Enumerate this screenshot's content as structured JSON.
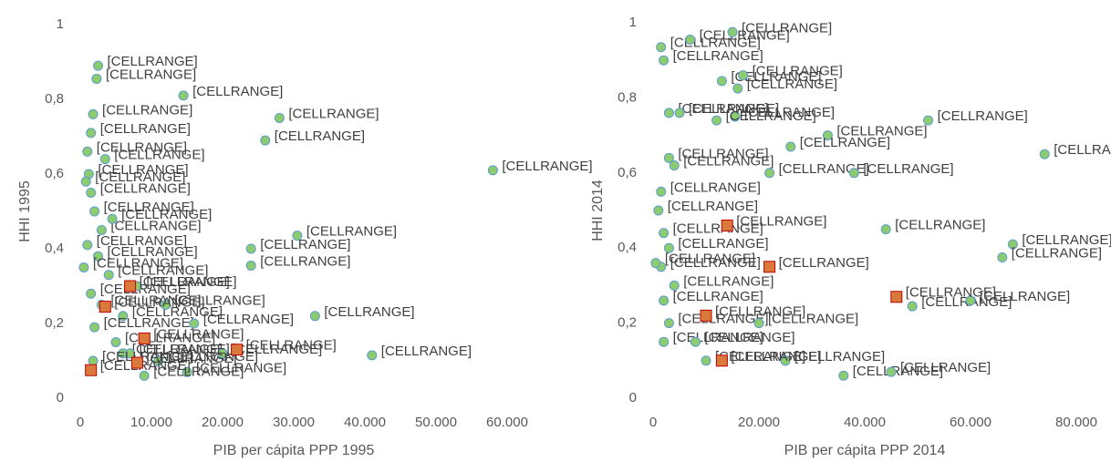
{
  "chart_data": [
    {
      "type": "scatter",
      "x_label": "PIB per cápita PPP 1995",
      "y_label": "HHI 1995",
      "xlim": [
        0,
        60000
      ],
      "ylim": [
        0,
        1
      ],
      "xticks": [
        0,
        {
          "value": 10000,
          "label": "10.000"
        },
        {
          "value": 20000,
          "label": "20.000"
        },
        {
          "value": 30000,
          "label": "30.000"
        },
        {
          "value": 40000,
          "label": "40.000"
        },
        {
          "value": 50000,
          "label": "50.000"
        },
        {
          "value": 60000,
          "label": "60.000"
        }
      ],
      "yticks": [
        0,
        {
          "value": 0.2,
          "label": "0,2"
        },
        {
          "value": 0.4,
          "label": "0,4"
        },
        {
          "value": 0.6,
          "label": "0,6"
        },
        {
          "value": 0.8,
          "label": "0,8"
        },
        1
      ],
      "series": [
        {
          "marker": "circle",
          "color": "#8ccc6e",
          "edge_color": "#5b9bd5",
          "x": [
            2500,
            2300,
            14500,
            28000,
            26000,
            58000,
            1800,
            1500,
            1000,
            1200,
            800,
            1500,
            2000,
            3000,
            1000,
            2500,
            500,
            4000,
            1500,
            3000,
            6000,
            2000,
            5000,
            6000,
            30500,
            24000,
            24000,
            33000,
            41000,
            15000,
            9000,
            11000,
            20000,
            8000,
            12000,
            16000,
            3500,
            7000,
            1800,
            4500
          ],
          "values": [
            0.89,
            0.855,
            0.81,
            0.75,
            0.69,
            0.61,
            0.76,
            0.71,
            0.66,
            0.6,
            0.58,
            0.55,
            0.5,
            0.45,
            0.41,
            0.38,
            0.35,
            0.33,
            0.28,
            0.25,
            0.22,
            0.19,
            0.15,
            0.12,
            0.435,
            0.4,
            0.355,
            0.22,
            0.115,
            0.07,
            0.06,
            0.1,
            0.12,
            0.3,
            0.25,
            0.2,
            0.64,
            0.12,
            0.1,
            0.48
          ],
          "labels": [
            "[CELLRANGE]",
            "[CELLRANGE]",
            "[CELLRANGE]",
            "[CELLRANGE]",
            "[CELLRANGE]",
            "[CELLRANGE]",
            "[CELLRANGE]",
            "[CELLRANGE]",
            "[CELLRANGE]",
            "[CELLRANGE]",
            "[CELLRANGE]",
            "[CELLRANGE]",
            "[CELLRANGE]",
            "[CELLRANGE]",
            "[CELLRANGE]",
            "[CELLRANGE]",
            "[CELLRANGE]",
            "[CELLRANGE]",
            "[CELLRANGE]",
            "[CELLRANGE]",
            "[CELLRANGE]",
            "[CELLRANGE]",
            "[CELLRANGE]",
            "[CELLRANGE]",
            "[CELLRANGE]",
            "[CELLRANGE]",
            "[CELLRANGE]",
            "[CELLRANGE]",
            "[CELLRANGE]",
            "[CELLRANGE]",
            "[CELLRANGE]",
            "[CELLRANGE]",
            "[CELLRANGE]",
            "[CELLRANGE]",
            "[CELLRANGE]",
            "[CELLRANGE]",
            "[CELLRANGE]",
            "[CELLRANGE]",
            "[CELLRANGE]",
            "[CELLRANGE]"
          ]
        },
        {
          "marker": "square",
          "color": "#d9793c",
          "edge_color": "#c00000",
          "x": [
            1500,
            3500,
            8000,
            22000,
            7000,
            9000
          ],
          "values": [
            0.075,
            0.245,
            0.095,
            0.13,
            0.3,
            0.16
          ],
          "labels": [
            "[CELLRANGE]",
            "[CELLRANGE]",
            "[CELLRANGE]",
            "[CELLRANGE]",
            "[CELLRANGE]",
            "[CELLRANGE]"
          ]
        }
      ]
    },
    {
      "type": "scatter",
      "x_label": "PIB per cápita PPP 2014",
      "y_label": "HHI 2014",
      "xlim": [
        0,
        80000
      ],
      "ylim": [
        0,
        1
      ],
      "xticks": [
        0,
        {
          "value": 20000,
          "label": "20.000"
        },
        {
          "value": 40000,
          "label": "40.000"
        },
        {
          "value": 60000,
          "label": "60.000"
        },
        {
          "value": 80000,
          "label": "80.000"
        }
      ],
      "yticks": [
        0,
        {
          "value": 0.2,
          "label": "0,2"
        },
        {
          "value": 0.4,
          "label": "0,4"
        },
        {
          "value": 0.6,
          "label": "0,6"
        },
        {
          "value": 0.8,
          "label": "0,8"
        },
        1
      ],
      "series": [
        {
          "marker": "circle",
          "color": "#8ccc6e",
          "edge_color": "#5b9bd5",
          "x": [
            1500,
            7000,
            15000,
            2000,
            13000,
            17000,
            16000,
            3000,
            5000,
            15500,
            12000,
            52000,
            33000,
            26000,
            74000,
            3000,
            4000,
            22000,
            38000,
            1500,
            1000,
            2000,
            44000,
            68000,
            66000,
            3000,
            1500,
            500,
            4000,
            2000,
            49000,
            60000,
            3000,
            2000,
            10000,
            8000,
            25000,
            36000,
            45000,
            20000
          ],
          "values": [
            0.935,
            0.955,
            0.975,
            0.9,
            0.845,
            0.86,
            0.825,
            0.76,
            0.76,
            0.75,
            0.74,
            0.74,
            0.7,
            0.67,
            0.65,
            0.64,
            0.62,
            0.6,
            0.6,
            0.55,
            0.5,
            0.44,
            0.45,
            0.41,
            0.375,
            0.4,
            0.35,
            0.36,
            0.3,
            0.26,
            0.245,
            0.26,
            0.2,
            0.15,
            0.1,
            0.15,
            0.1,
            0.06,
            0.07,
            0.2
          ],
          "labels": [
            "[CELLRANGE]",
            "[CELLRANGE]",
            "[CELLRANGE]",
            "[CELLRANGE]",
            "[CELLRANGE]",
            "[CELLRANGE]",
            "[CELLRANGE]",
            "[CELLRANGE]",
            "[CELLRANGE]",
            "[CELLRANGE]",
            "[CELLRANGE]",
            "[CELLRANGE]",
            "[CELLRANGE]",
            "[CELLRANGE]",
            "[CELLRANGE]",
            "[CELLRANGE]",
            "[CELLRANGE]",
            "[CELLRANGE]",
            "[CELLRANGE]",
            "[CELLRANGE]",
            "[CELLRANGE]",
            "[CELLRANGE]",
            "[CELLRANGE]",
            "[CELLRANGE]",
            "[CELLRANGE]",
            "[CELLRANGE]",
            "[CELLRANGE]",
            "[CELLRANGE]",
            "[CELLRANGE]",
            "[CELLRANGE]",
            "[CELLRANGE]",
            "[CELLRANGE]",
            "[CELLRANGE]",
            "[CELLRANGE]",
            "[CELLRANGE]",
            "[CELLRANGE]",
            "[CELLRANGE]",
            "[CELLRANGE]",
            "[CELLRANGE]",
            "[CELLRANGE]"
          ]
        },
        {
          "marker": "square",
          "color": "#d9793c",
          "edge_color": "#c00000",
          "x": [
            13000,
            46000,
            22000,
            10000,
            14000
          ],
          "values": [
            0.1,
            0.27,
            0.35,
            0.22,
            0.46
          ],
          "labels": [
            "[CELLRANGE]",
            "[CELLRANGE]",
            "[CELLRANGE]",
            "[CELLRANGE]",
            "[CELLRANGE]"
          ]
        }
      ]
    }
  ]
}
